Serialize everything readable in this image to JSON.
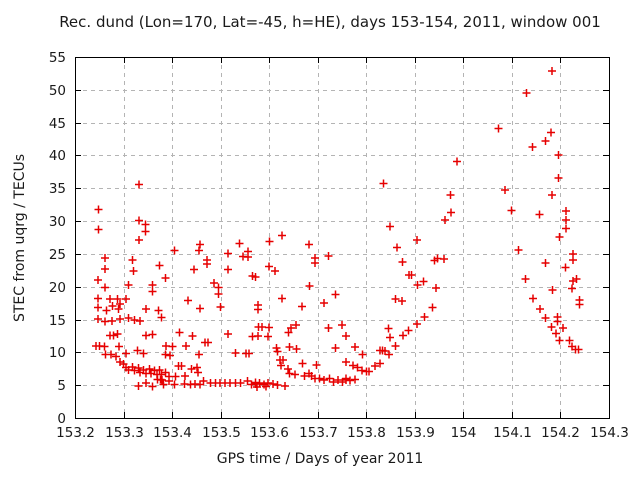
{
  "colors": {
    "marker": "#e60000",
    "grid": "#b4b4b4",
    "axis": "#000000",
    "background": "#ffffff"
  },
  "chart_data": {
    "type": "scatter",
    "title": "Rec. dund (Lon=170, Lat=-45, h=HE), days 153-154, 2011, window 001",
    "xlabel": "GPS time / Days of year 2011",
    "ylabel": "STEC from uqrg / TECUs",
    "xlim": [
      153.2,
      154.3
    ],
    "ylim": [
      0,
      55
    ],
    "xticks": [
      153.2,
      153.3,
      153.4,
      153.5,
      153.6,
      153.7,
      153.8,
      153.9,
      154,
      154.1,
      154.2,
      154.3
    ],
    "yticks": [
      0,
      5,
      10,
      15,
      20,
      25,
      30,
      35,
      40,
      45,
      50,
      55
    ],
    "grid": true,
    "grid_style": "dashed",
    "legend": false,
    "marker": "plus",
    "series": [
      {
        "name": "STEC",
        "points": [
          [
            153.243,
            11.0
          ],
          [
            153.247,
            21.0
          ],
          [
            153.247,
            18.2
          ],
          [
            153.247,
            16.8
          ],
          [
            153.247,
            15.1
          ],
          [
            153.248,
            31.8
          ],
          [
            153.248,
            28.7
          ],
          [
            153.25,
            11.0
          ],
          [
            153.261,
            10.9
          ],
          [
            153.262,
            24.4
          ],
          [
            153.262,
            22.7
          ],
          [
            153.262,
            19.9
          ],
          [
            153.262,
            14.7
          ],
          [
            153.263,
            9.7
          ],
          [
            153.265,
            16.4
          ],
          [
            153.272,
            18.1
          ],
          [
            153.272,
            12.6
          ],
          [
            153.274,
            9.7
          ],
          [
            153.276,
            14.8
          ],
          [
            153.277,
            17.1
          ],
          [
            153.279,
            12.6
          ],
          [
            153.284,
            9.4
          ],
          [
            153.288,
            18.1
          ],
          [
            153.288,
            12.8
          ],
          [
            153.29,
            16.6
          ],
          [
            153.291,
            10.9
          ],
          [
            153.293,
            17.4
          ],
          [
            153.293,
            15.1
          ],
          [
            153.293,
            8.5
          ],
          [
            153.3,
            8.2
          ],
          [
            153.305,
            18.1
          ],
          [
            153.305,
            9.8
          ],
          [
            153.305,
            7.7
          ],
          [
            153.31,
            20.3
          ],
          [
            153.31,
            15.2
          ],
          [
            153.31,
            7.3
          ],
          [
            153.318,
            24.1
          ],
          [
            153.318,
            7.8
          ],
          [
            153.32,
            22.4
          ],
          [
            153.323,
            14.9
          ],
          [
            153.323,
            7.2
          ],
          [
            153.329,
            10.3
          ],
          [
            153.331,
            7.6
          ],
          [
            153.331,
            4.9
          ],
          [
            153.332,
            35.6
          ],
          [
            153.332,
            30.1
          ],
          [
            153.332,
            27.1
          ],
          [
            153.334,
            14.8
          ],
          [
            153.334,
            6.9
          ],
          [
            153.341,
            9.8
          ],
          [
            153.341,
            7.3
          ],
          [
            153.345,
            29.5
          ],
          [
            153.345,
            28.4
          ],
          [
            153.346,
            16.6
          ],
          [
            153.346,
            12.6
          ],
          [
            153.346,
            6.8
          ],
          [
            153.346,
            5.3
          ],
          [
            153.353,
            7.5
          ],
          [
            153.357,
            6.8
          ],
          [
            153.36,
            20.3
          ],
          [
            153.36,
            19.3
          ],
          [
            153.36,
            12.7
          ],
          [
            153.36,
            4.8
          ],
          [
            153.364,
            7.2
          ],
          [
            153.369,
            6.6
          ],
          [
            153.37,
            5.9
          ],
          [
            153.372,
            16.4
          ],
          [
            153.374,
            23.2
          ],
          [
            153.374,
            7.3
          ],
          [
            153.376,
            5.9
          ],
          [
            153.378,
            15.3
          ],
          [
            153.378,
            6.6
          ],
          [
            153.379,
            5.8
          ],
          [
            153.382,
            5.1
          ],
          [
            153.386,
            21.3
          ],
          [
            153.386,
            9.7
          ],
          [
            153.386,
            6.9
          ],
          [
            153.387,
            11.0
          ],
          [
            153.394,
            6.3
          ],
          [
            153.394,
            5.6
          ],
          [
            153.396,
            9.5
          ],
          [
            153.401,
            10.9
          ],
          [
            153.405,
            25.5
          ],
          [
            153.405,
            5.1
          ],
          [
            153.407,
            6.3
          ],
          [
            153.413,
            7.9
          ],
          [
            153.415,
            13.0
          ],
          [
            153.419,
            7.9
          ],
          [
            153.426,
            5.2
          ],
          [
            153.427,
            6.4
          ],
          [
            153.429,
            11.0
          ],
          [
            153.433,
            17.9
          ],
          [
            153.438,
            5.1
          ],
          [
            153.44,
            7.5
          ],
          [
            153.442,
            12.5
          ],
          [
            153.445,
            22.6
          ],
          [
            153.447,
            5.2
          ],
          [
            153.451,
            7.7
          ],
          [
            153.453,
            6.9
          ],
          [
            153.455,
            25.5
          ],
          [
            153.455,
            9.7
          ],
          [
            153.457,
            26.4
          ],
          [
            153.457,
            16.7
          ],
          [
            153.458,
            5.1
          ],
          [
            153.465,
            5.6
          ],
          [
            153.468,
            11.5
          ],
          [
            153.472,
            24.1
          ],
          [
            153.472,
            23.5
          ],
          [
            153.474,
            11.5
          ],
          [
            153.479,
            5.3
          ],
          [
            153.486,
            20.6
          ],
          [
            153.489,
            5.3
          ],
          [
            153.496,
            19.9
          ],
          [
            153.496,
            18.9
          ],
          [
            153.499,
            5.3
          ],
          [
            153.5,
            16.9
          ],
          [
            153.509,
            5.3
          ],
          [
            153.515,
            25.1
          ],
          [
            153.515,
            22.6
          ],
          [
            153.515,
            12.8
          ],
          [
            153.519,
            5.3
          ],
          [
            153.531,
            9.9
          ],
          [
            153.531,
            5.3
          ],
          [
            153.539,
            26.6
          ],
          [
            153.541,
            5.3
          ],
          [
            153.546,
            24.6
          ],
          [
            153.552,
            9.8
          ],
          [
            153.555,
            5.6
          ],
          [
            153.556,
            25.4
          ],
          [
            153.556,
            24.5
          ],
          [
            153.558,
            9.8
          ],
          [
            153.564,
            5.1
          ],
          [
            153.566,
            21.6
          ],
          [
            153.566,
            12.4
          ],
          [
            153.572,
            21.5
          ],
          [
            153.572,
            5.4
          ],
          [
            153.572,
            5.2
          ],
          [
            153.575,
            4.7
          ],
          [
            153.577,
            17.2
          ],
          [
            153.577,
            16.5
          ],
          [
            153.577,
            12.5
          ],
          [
            153.578,
            13.9
          ],
          [
            153.58,
            5.3
          ],
          [
            153.585,
            13.9
          ],
          [
            153.589,
            5.1
          ],
          [
            153.593,
            4.8
          ],
          [
            153.598,
            12.4
          ],
          [
            153.598,
            5.3
          ],
          [
            153.6,
            23.1
          ],
          [
            153.6,
            13.8
          ],
          [
            153.601,
            26.9
          ],
          [
            153.608,
            5.2
          ],
          [
            153.612,
            22.4
          ],
          [
            153.615,
            10.7
          ],
          [
            153.617,
            10.1
          ],
          [
            153.617,
            5.0
          ],
          [
            153.622,
            8.8
          ],
          [
            153.624,
            8.0
          ],
          [
            153.626,
            27.8
          ],
          [
            153.626,
            18.2
          ],
          [
            153.628,
            8.8
          ],
          [
            153.633,
            4.9
          ],
          [
            153.639,
            7.5
          ],
          [
            153.64,
            13.0
          ],
          [
            153.642,
            10.8
          ],
          [
            153.642,
            6.8
          ],
          [
            153.645,
            13.7
          ],
          [
            153.653,
            6.6
          ],
          [
            153.655,
            14.2
          ],
          [
            153.656,
            10.5
          ],
          [
            153.668,
            17.0
          ],
          [
            153.669,
            8.3
          ],
          [
            153.673,
            6.4
          ],
          [
            153.682,
            26.4
          ],
          [
            153.682,
            6.8
          ],
          [
            153.683,
            20.1
          ],
          [
            153.687,
            6.4
          ],
          [
            153.694,
            24.4
          ],
          [
            153.694,
            23.6
          ],
          [
            153.694,
            6.0
          ],
          [
            153.697,
            8.1
          ],
          [
            153.704,
            6.0
          ],
          [
            153.713,
            17.5
          ],
          [
            153.713,
            5.8
          ],
          [
            153.722,
            24.7
          ],
          [
            153.722,
            13.7
          ],
          [
            153.724,
            6.0
          ],
          [
            153.733,
            5.5
          ],
          [
            153.737,
            18.8
          ],
          [
            153.737,
            10.7
          ],
          [
            153.742,
            5.8
          ],
          [
            153.75,
            14.2
          ],
          [
            153.751,
            5.5
          ],
          [
            153.758,
            12.5
          ],
          [
            153.758,
            8.5
          ],
          [
            153.758,
            6.0
          ],
          [
            153.758,
            5.8
          ],
          [
            153.766,
            5.7
          ],
          [
            153.773,
            8.0
          ],
          [
            153.777,
            10.8
          ],
          [
            153.777,
            5.9
          ],
          [
            153.782,
            7.7
          ],
          [
            153.791,
            7.2
          ],
          [
            153.792,
            9.7
          ],
          [
            153.8,
            7.1
          ],
          [
            153.806,
            7.1
          ],
          [
            153.818,
            7.9
          ],
          [
            153.828,
            10.3
          ],
          [
            153.828,
            8.3
          ],
          [
            153.833,
            10.3
          ],
          [
            153.836,
            35.7
          ],
          [
            153.839,
            10.2
          ],
          [
            153.846,
            13.6
          ],
          [
            153.847,
            9.7
          ],
          [
            153.849,
            29.2
          ],
          [
            153.849,
            12.3
          ],
          [
            153.86,
            18.1
          ],
          [
            153.86,
            11.0
          ],
          [
            153.863,
            26.0
          ],
          [
            153.874,
            17.8
          ],
          [
            153.875,
            23.8
          ],
          [
            153.876,
            12.6
          ],
          [
            153.887,
            13.3
          ],
          [
            153.888,
            21.8
          ],
          [
            153.893,
            21.8
          ],
          [
            153.904,
            27.1
          ],
          [
            153.904,
            14.3
          ],
          [
            153.906,
            20.3
          ],
          [
            153.918,
            20.8
          ],
          [
            153.92,
            15.4
          ],
          [
            153.936,
            16.8
          ],
          [
            153.941,
            24.0
          ],
          [
            153.944,
            19.8
          ],
          [
            153.947,
            24.3
          ],
          [
            153.96,
            24.2
          ],
          [
            153.962,
            30.2
          ],
          [
            153.973,
            34.0
          ],
          [
            153.975,
            31.3
          ],
          [
            153.987,
            39.1
          ],
          [
            154.072,
            44.1
          ],
          [
            154.086,
            34.7
          ],
          [
            154.099,
            31.6
          ],
          [
            154.114,
            25.6
          ],
          [
            154.128,
            21.2
          ],
          [
            154.13,
            49.5
          ],
          [
            154.142,
            41.3
          ],
          [
            154.143,
            18.2
          ],
          [
            154.157,
            31.0
          ],
          [
            154.158,
            16.6
          ],
          [
            154.169,
            42.2
          ],
          [
            154.169,
            23.6
          ],
          [
            154.169,
            15.2
          ],
          [
            154.181,
            43.5
          ],
          [
            154.182,
            13.9
          ],
          [
            154.183,
            52.9
          ],
          [
            154.183,
            34.0
          ],
          [
            154.184,
            19.5
          ],
          [
            154.191,
            12.9
          ],
          [
            154.194,
            15.4
          ],
          [
            154.194,
            14.7
          ],
          [
            154.196,
            40.1
          ],
          [
            154.196,
            36.6
          ],
          [
            154.198,
            27.6
          ],
          [
            154.198,
            11.8
          ],
          [
            154.205,
            13.7
          ],
          [
            154.21,
            22.9
          ],
          [
            154.211,
            31.5
          ],
          [
            154.211,
            30.2
          ],
          [
            154.211,
            28.9
          ],
          [
            154.219,
            11.8
          ],
          [
            154.224,
            19.7
          ],
          [
            154.224,
            10.9
          ],
          [
            154.226,
            25.0
          ],
          [
            154.226,
            24.1
          ],
          [
            154.226,
            20.9
          ],
          [
            154.231,
            10.4
          ],
          [
            154.233,
            21.2
          ],
          [
            154.237,
            10.4
          ],
          [
            154.239,
            18.0
          ],
          [
            154.239,
            17.3
          ]
        ]
      }
    ]
  }
}
